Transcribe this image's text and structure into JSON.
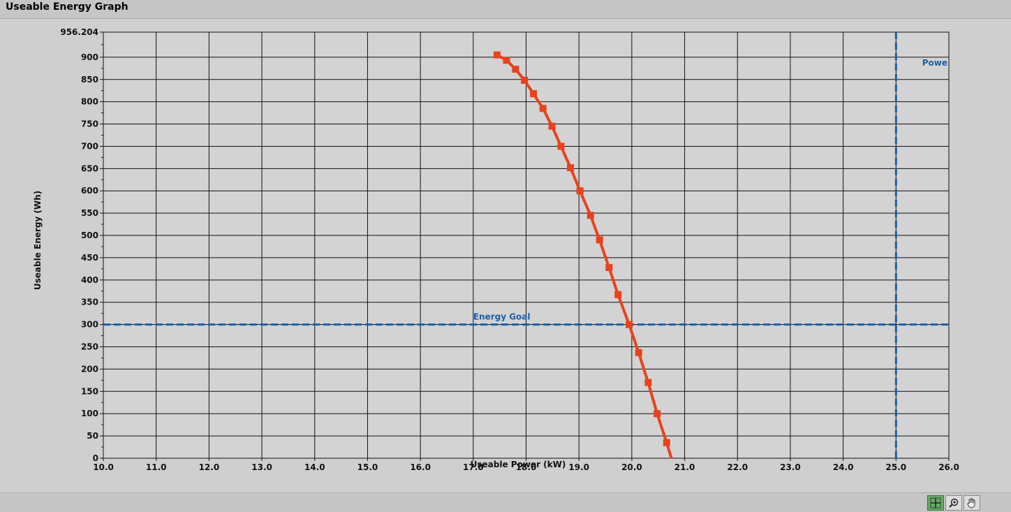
{
  "panel": {
    "title": "Useable Energy Graph"
  },
  "chart_data": {
    "type": "line",
    "xlabel": "Useable Power (kW)",
    "ylabel": "Useable Energy (Wh)",
    "xlim": [
      10.0,
      26.0
    ],
    "ylim": [
      0,
      956.204
    ],
    "x_ticks": [
      "10.0",
      "11.0",
      "12.0",
      "13.0",
      "14.0",
      "15.0",
      "16.0",
      "17.0",
      "18.0",
      "19.0",
      "20.0",
      "21.0",
      "22.0",
      "23.0",
      "24.0",
      "25.0",
      "26.0"
    ],
    "y_ticks": [
      "0",
      "50",
      "100",
      "150",
      "200",
      "250",
      "300",
      "350",
      "400",
      "450",
      "500",
      "550",
      "600",
      "650",
      "700",
      "750",
      "800",
      "850",
      "900",
      "956.204"
    ],
    "grid": true,
    "series": [
      {
        "color": "#e8431c",
        "marker": "square",
        "x": [
          17.45,
          17.63,
          17.8,
          17.97,
          18.14,
          18.32,
          18.49,
          18.66,
          18.84,
          19.02,
          19.22,
          19.39,
          19.57,
          19.74,
          19.95,
          20.13,
          20.31,
          20.48,
          20.66,
          20.75
        ],
        "y": [
          905,
          893,
          873,
          848,
          818,
          785,
          745,
          700,
          652,
          600,
          545,
          490,
          428,
          367,
          300,
          237,
          170,
          100,
          35,
          0
        ]
      }
    ],
    "cursors": [
      {
        "label": "Energy Goal",
        "orientation": "horizontal",
        "value": 300,
        "color": "#1b5fa8"
      },
      {
        "label": "Powe",
        "orientation": "vertical",
        "value": 25.0,
        "color": "#1b5fa8"
      }
    ]
  },
  "palette": {
    "tools": [
      {
        "name": "cursor-move-tool",
        "icon": "crosshair-icon",
        "active": true
      },
      {
        "name": "zoom-tool",
        "icon": "zoom-icon",
        "active": false
      },
      {
        "name": "pan-tool",
        "icon": "hand-icon",
        "active": false
      }
    ]
  }
}
